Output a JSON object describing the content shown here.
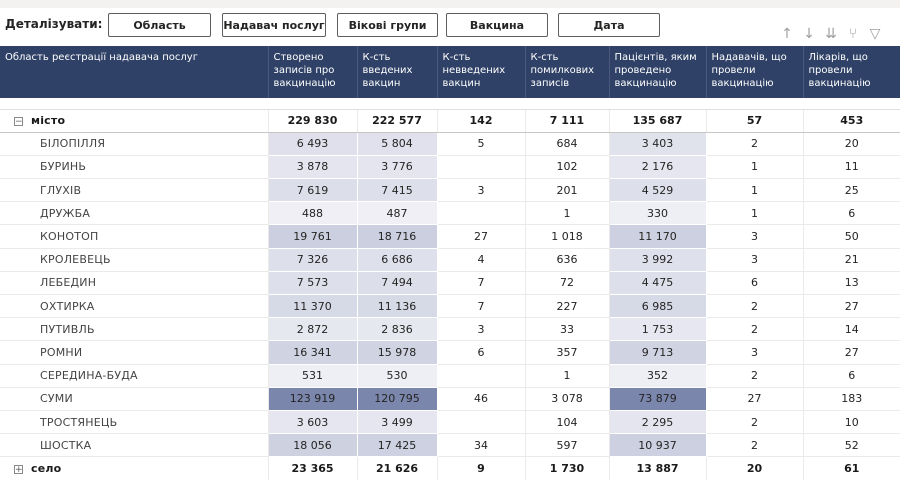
{
  "toolbar": {
    "label": "Деталізувати:",
    "buttons": [
      "Область",
      "Надавач послуг",
      "Вікові групи",
      "Вакцина",
      "Дата"
    ]
  },
  "icons": [
    "arrow-up-icon",
    "arrow-down-icon",
    "double-arrow-down-icon",
    "fork-icon",
    "filter-icon"
  ],
  "columns": [
    "Область реєстрації надавача послуг",
    "Створено записів про вакцинацію",
    "К-сть введених вакцин",
    "К-сть невведених вакцин",
    "К-сть помилкових записів",
    "Пацієнтів, яким проведено вакцинацію",
    "Надавачів, що провели вакцинацію",
    "Лікарів, що провели вакцинацію"
  ],
  "group_city": {
    "toggle": "−",
    "name": "місто",
    "values": [
      "229 830",
      "222 577",
      "142",
      "7 111",
      "135 687",
      "57",
      "453"
    ]
  },
  "rows": [
    {
      "name": "БІЛОПІЛЛЯ",
      "values": [
        "6 493",
        "5 804",
        "5",
        "684",
        "3 403",
        "2",
        "20"
      ]
    },
    {
      "name": "БУРИНЬ",
      "values": [
        "3 878",
        "3 776",
        "",
        "102",
        "2 176",
        "1",
        "11"
      ]
    },
    {
      "name": "ГЛУХІВ",
      "values": [
        "7 619",
        "7 415",
        "3",
        "201",
        "4 529",
        "1",
        "25"
      ]
    },
    {
      "name": "ДРУЖБА",
      "values": [
        "488",
        "487",
        "",
        "1",
        "330",
        "1",
        "6"
      ]
    },
    {
      "name": "КОНОТОП",
      "values": [
        "19 761",
        "18 716",
        "27",
        "1 018",
        "11 170",
        "3",
        "50"
      ]
    },
    {
      "name": "КРОЛЕВЕЦЬ",
      "values": [
        "7 326",
        "6 686",
        "4",
        "636",
        "3 992",
        "3",
        "21"
      ]
    },
    {
      "name": "ЛЕБЕДИН",
      "values": [
        "7 573",
        "7 494",
        "7",
        "72",
        "4 475",
        "6",
        "13"
      ]
    },
    {
      "name": "ОХТИРКА",
      "values": [
        "11 370",
        "11 136",
        "7",
        "227",
        "6 985",
        "2",
        "27"
      ]
    },
    {
      "name": "ПУТИВЛЬ",
      "values": [
        "2 872",
        "2 836",
        "3",
        "33",
        "1 753",
        "2",
        "14"
      ]
    },
    {
      "name": "РОМНИ",
      "values": [
        "16 341",
        "15 978",
        "6",
        "357",
        "9 713",
        "3",
        "27"
      ]
    },
    {
      "name": "СЕРЕДИНА-БУДА",
      "values": [
        "531",
        "530",
        "",
        "1",
        "352",
        "2",
        "6"
      ]
    },
    {
      "name": "СУМИ",
      "values": [
        "123 919",
        "120 795",
        "46",
        "3 078",
        "73 879",
        "27",
        "183"
      ]
    },
    {
      "name": "ТРОСТЯНЕЦЬ",
      "values": [
        "3 603",
        "3 499",
        "",
        "104",
        "2 295",
        "2",
        "10"
      ]
    },
    {
      "name": "ШОСТКА",
      "values": [
        "18 056",
        "17 425",
        "34",
        "597",
        "10 937",
        "2",
        "52"
      ]
    }
  ],
  "group_village": {
    "toggle": "+",
    "name": "село",
    "values": [
      "23 365",
      "21 626",
      "9",
      "1 730",
      "13 887",
      "20",
      "61"
    ]
  },
  "colors": {
    "header": "#2f4166",
    "scale_low": "#f3f3f8",
    "scale_high": "#7b86ad"
  }
}
